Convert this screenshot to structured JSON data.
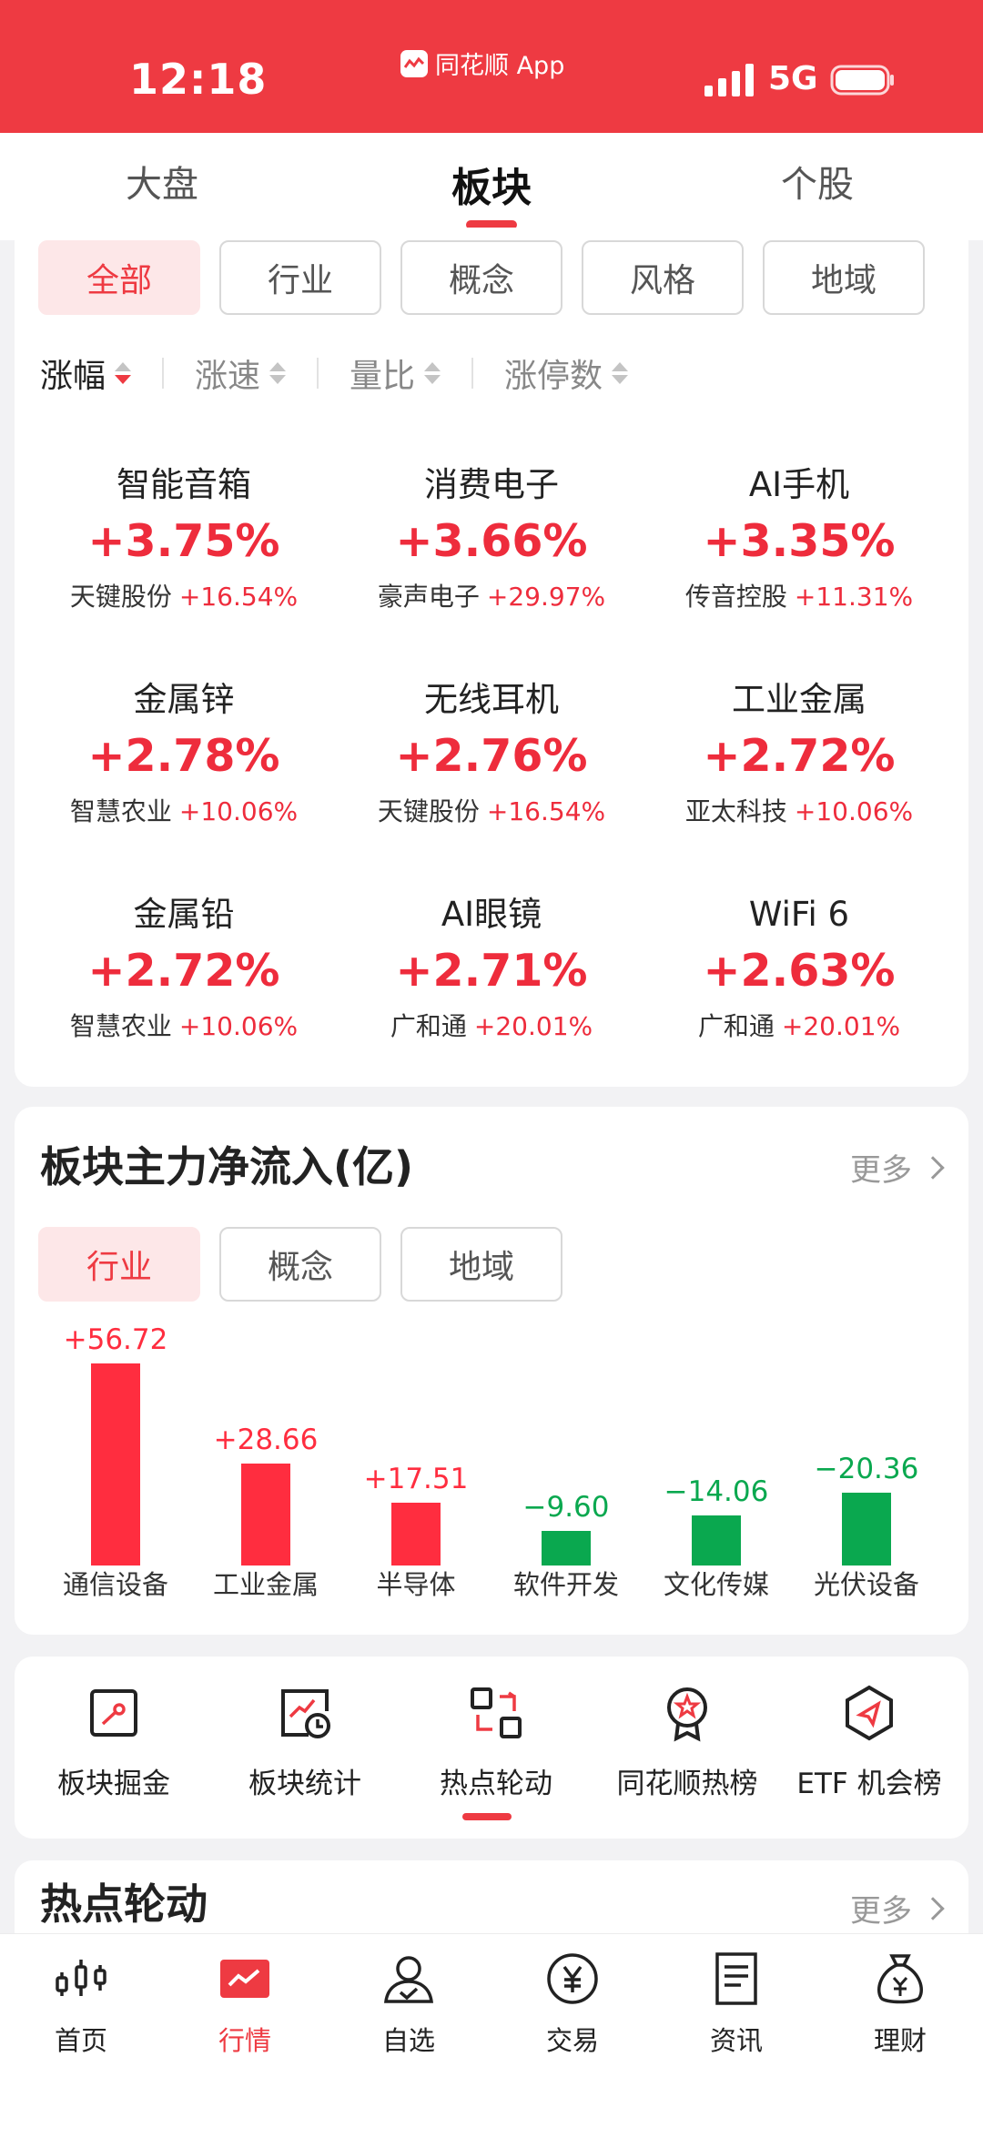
{
  "status_bar": {
    "time": "12:18",
    "app_label": "同花顺 App",
    "network": "5G"
  },
  "top_tabs": [
    {
      "label": "大盘",
      "active": false
    },
    {
      "label": "板块",
      "active": true
    },
    {
      "label": "个股",
      "active": false
    }
  ],
  "filters": [
    {
      "label": "全部",
      "active": true
    },
    {
      "label": "行业",
      "active": false
    },
    {
      "label": "概念",
      "active": false
    },
    {
      "label": "风格",
      "active": false
    },
    {
      "label": "地域",
      "active": false
    }
  ],
  "sort_options": [
    {
      "label": "涨幅",
      "active": true
    },
    {
      "label": "涨速",
      "active": false
    },
    {
      "label": "量比",
      "active": false
    },
    {
      "label": "涨停数",
      "active": false
    }
  ],
  "sectors": [
    {
      "name": "智能音箱",
      "change": "+3.75%",
      "leader": "天键股份",
      "leader_change": "+16.54%"
    },
    {
      "name": "消费电子",
      "change": "+3.66%",
      "leader": "豪声电子",
      "leader_change": "+29.97%"
    },
    {
      "name": "AI手机",
      "change": "+3.35%",
      "leader": "传音控股",
      "leader_change": "+11.31%"
    },
    {
      "name": "金属锌",
      "change": "+2.78%",
      "leader": "智慧农业",
      "leader_change": "+10.06%"
    },
    {
      "name": "无线耳机",
      "change": "+2.76%",
      "leader": "天键股份",
      "leader_change": "+16.54%"
    },
    {
      "name": "工业金属",
      "change": "+2.72%",
      "leader": "亚太科技",
      "leader_change": "+10.06%"
    },
    {
      "name": "金属铅",
      "change": "+2.72%",
      "leader": "智慧农业",
      "leader_change": "+10.06%"
    },
    {
      "name": "AI眼镜",
      "change": "+2.71%",
      "leader": "广和通",
      "leader_change": "+20.01%"
    },
    {
      "name": "WiFi 6",
      "change": "+2.63%",
      "leader": "广和通",
      "leader_change": "+20.01%"
    }
  ],
  "fund_flow": {
    "title": "板块主力净流入(亿)",
    "more_label": "更多",
    "tabs": [
      {
        "label": "行业",
        "active": true
      },
      {
        "label": "概念",
        "active": false
      },
      {
        "label": "地域",
        "active": false
      }
    ]
  },
  "chart_data": {
    "type": "bar",
    "categories": [
      "通信设备",
      "工业金属",
      "半导体",
      "软件开发",
      "文化传媒",
      "光伏设备"
    ],
    "values": [
      56.72,
      28.66,
      17.51,
      -9.6,
      -14.06,
      -20.36
    ],
    "value_labels": [
      "+56.72",
      "+28.66",
      "+17.51",
      "−9.60",
      "−14.06",
      "−20.36"
    ],
    "positive_color": "#ff2d3f",
    "negative_color": "#0aa84f"
  },
  "tools": [
    {
      "label": "板块掘金",
      "icon": "sector-gold-icon"
    },
    {
      "label": "板块统计",
      "icon": "sector-stats-icon"
    },
    {
      "label": "热点轮动",
      "icon": "hotspot-rotation-icon"
    },
    {
      "label": "同花顺热榜",
      "icon": "hot-list-icon"
    },
    {
      "label": "ETF 机会榜",
      "icon": "etf-opportunity-icon"
    }
  ],
  "hot_rotation": {
    "title": "热点轮动",
    "more_label": "更多"
  },
  "bottom_nav": [
    {
      "label": "首页",
      "icon": "candlestick-icon",
      "active": false
    },
    {
      "label": "行情",
      "icon": "market-trend-icon",
      "active": true
    },
    {
      "label": "自选",
      "icon": "user-check-icon",
      "active": false
    },
    {
      "label": "交易",
      "icon": "yuan-coin-icon",
      "active": false
    },
    {
      "label": "资讯",
      "icon": "news-doc-icon",
      "active": false
    },
    {
      "label": "理财",
      "icon": "money-bag-icon",
      "active": false
    }
  ],
  "colors": {
    "accent": "#ee3a42",
    "rise": "#ee2c3c",
    "fall": "#0aa84f"
  }
}
